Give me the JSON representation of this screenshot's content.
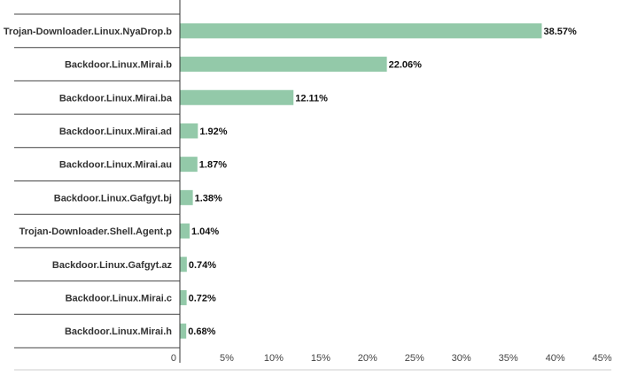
{
  "chart_data": {
    "type": "bar",
    "orientation": "horizontal",
    "categories": [
      "Trojan-Downloader.Linux.NyaDrop.b",
      "Backdoor.Linux.Mirai.b",
      "Backdoor.Linux.Mirai.ba",
      "Backdoor.Linux.Mirai.ad",
      "Backdoor.Linux.Mirai.au",
      "Backdoor.Linux.Gafgyt.bj",
      "Trojan-Downloader.Shell.Agent.p",
      "Backdoor.Linux.Gafgyt.az",
      "Backdoor.Linux.Mirai.c",
      "Backdoor.Linux.Mirai.h"
    ],
    "values": [
      38.57,
      22.06,
      12.11,
      1.92,
      1.87,
      1.38,
      1.04,
      0.74,
      0.72,
      0.68
    ],
    "value_labels": [
      "38.57%",
      "22.06%",
      "12.11%",
      "1.92%",
      "1.87%",
      "1.38%",
      "1.04%",
      "0.74%",
      "0.72%",
      "0.68%"
    ],
    "xlim": [
      0,
      45
    ],
    "x_ticks": [
      0,
      5,
      10,
      15,
      20,
      25,
      30,
      35,
      40,
      45
    ],
    "x_tick_labels": [
      "0",
      "5%",
      "10%",
      "15%",
      "20%",
      "25%",
      "30%",
      "35%",
      "40%",
      "45%"
    ],
    "bar_color": "#93c9a9",
    "title": "",
    "xlabel": "",
    "ylabel": "",
    "grid": false,
    "legend": "none"
  }
}
